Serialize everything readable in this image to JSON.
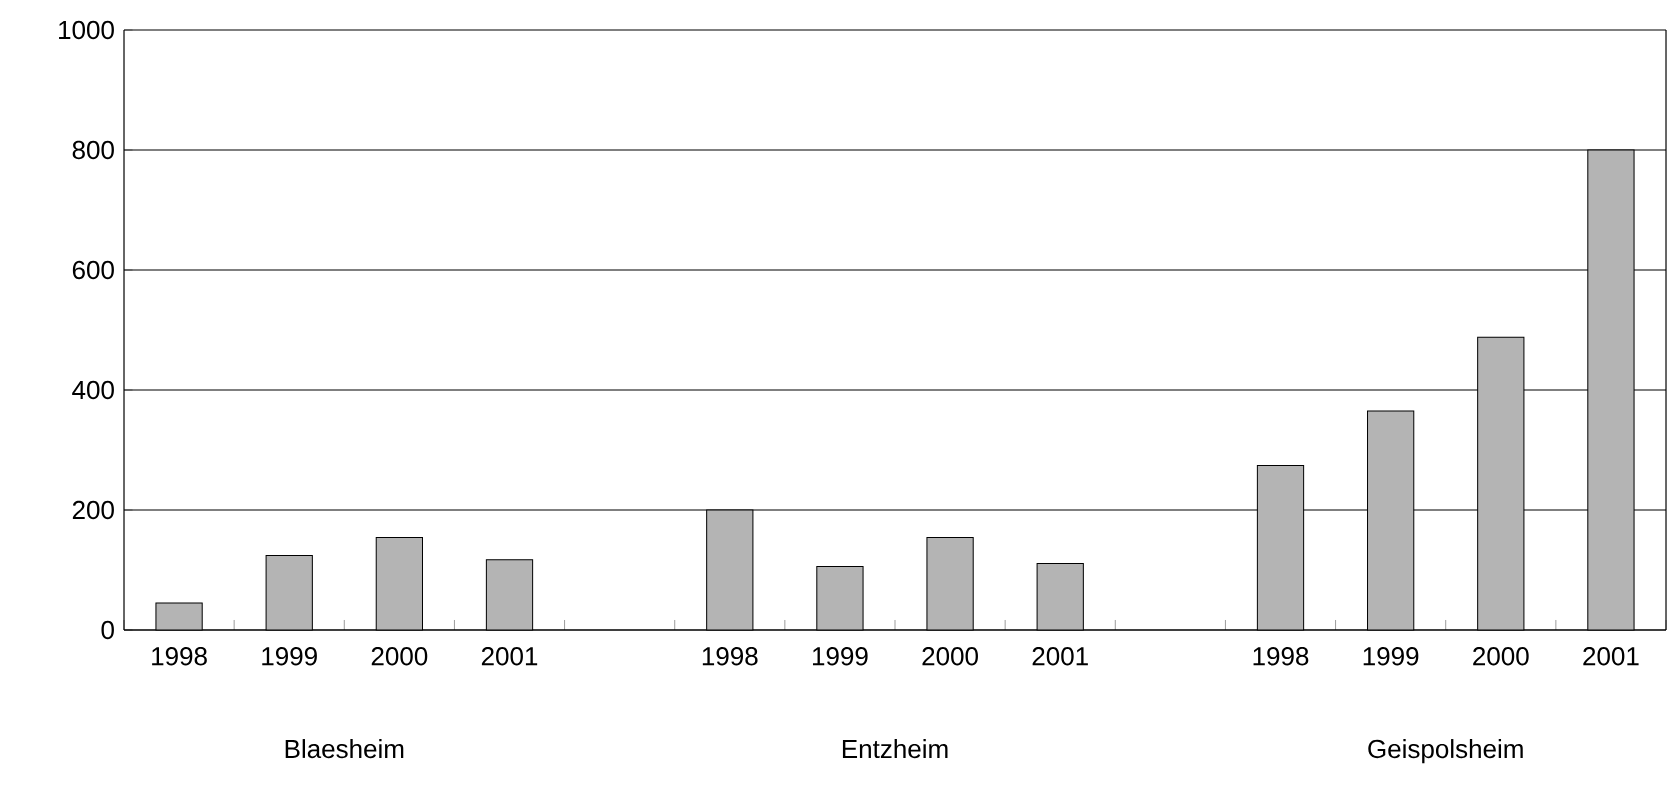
{
  "chart_data": {
    "type": "bar",
    "categories": [
      "1998",
      "1999",
      "2000",
      "2001",
      null,
      "1998",
      "1999",
      "2000",
      "2001",
      null,
      "1998",
      "1999",
      "2000",
      "2001"
    ],
    "values": [
      45,
      124,
      154,
      117,
      null,
      200,
      106,
      154,
      111,
      null,
      274,
      365,
      488,
      800
    ],
    "color": "#b4b4b4",
    "ylim": [
      0,
      1000
    ],
    "yticks": [
      0,
      200,
      400,
      600,
      800,
      1000
    ],
    "grid": "y",
    "annotations": [
      "Blaesheim",
      "Entzheim",
      "Geispolsheim"
    ]
  }
}
